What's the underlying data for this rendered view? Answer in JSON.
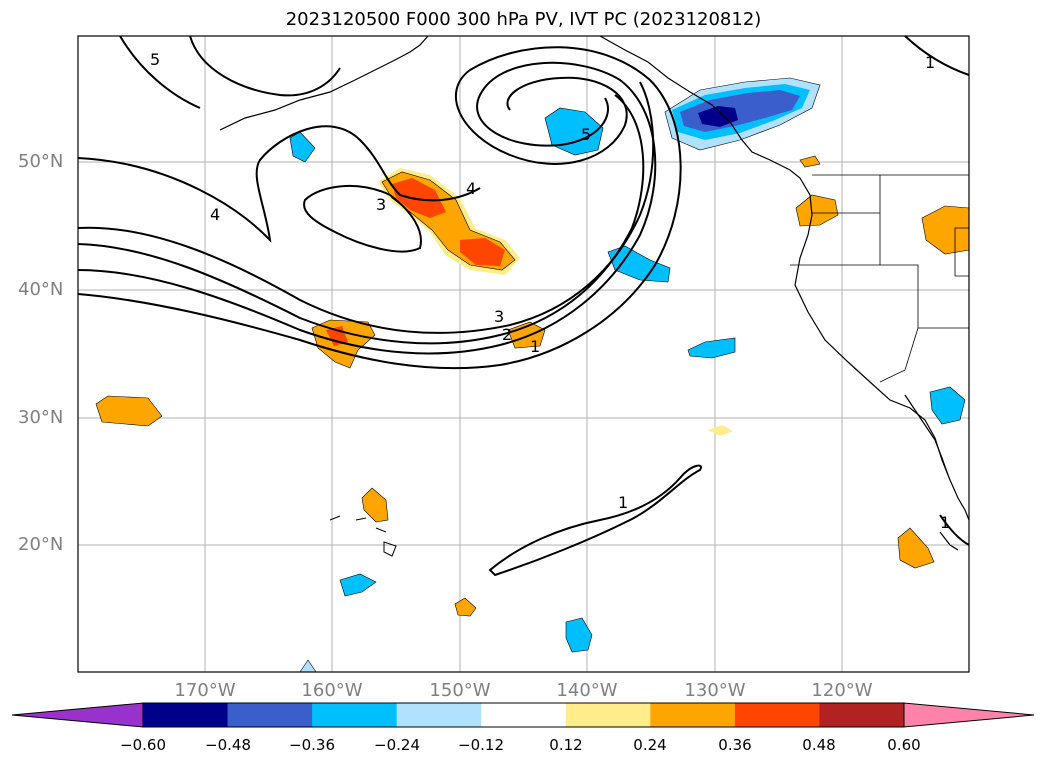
{
  "title": "2023120500 F000 300 hPa PV, IVT PC (2023120812)",
  "lat_labels": [
    "50°N",
    "40°N",
    "30°N",
    "20°N"
  ],
  "lon_labels": [
    "170°W",
    "160°W",
    "150°W",
    "140°W",
    "130°W",
    "120°W"
  ],
  "contour_labels": [
    "5",
    "5",
    "4",
    "4",
    "3",
    "3",
    "2",
    "1",
    "1",
    "1",
    "1"
  ],
  "colorbar": {
    "ticks": [
      "−0.60",
      "−0.48",
      "−0.36",
      "−0.24",
      "−0.12",
      "0.12",
      "0.24",
      "0.36",
      "0.48",
      "0.60"
    ],
    "colors": [
      "#9932cc",
      "#00008b",
      "#3a5fcd",
      "#00bfff",
      "#b0e2ff",
      "#ffffff",
      "#ffec8b",
      "#ffa500",
      "#ff4500",
      "#b22222",
      "#ff82ab"
    ]
  },
  "colors": {
    "negative_light": "#b0e2ff",
    "negative_mid": "#00bfff",
    "negative_strong": "#3a5fcd",
    "negative_max": "#00008b",
    "positive_light": "#ffec8b",
    "positive_mid": "#ffa500",
    "positive_strong": "#ff4500"
  }
}
